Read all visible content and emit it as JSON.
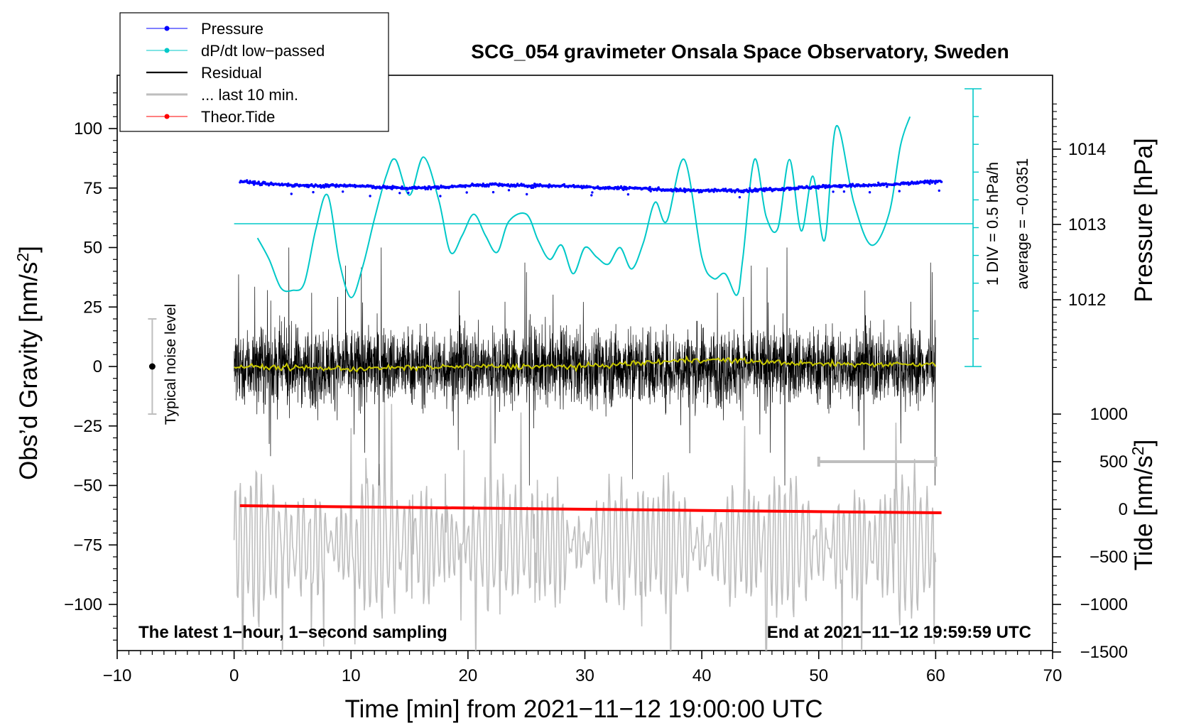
{
  "chart_data": {
    "type": "line",
    "title": "SCG_054 gravimeter Onsala Space Observatory, Sweden",
    "xlabel": "Time [min] from 2021−11−12 19:00:00 UTC",
    "xlim": [
      -10,
      70
    ],
    "xticks": [
      -10,
      0,
      10,
      20,
      30,
      40,
      50,
      60,
      70
    ],
    "xtick_labels": [
      "−10",
      "0",
      "10",
      "20",
      "30",
      "40",
      "50",
      "60",
      "70"
    ],
    "ylabel_left": "Obs’d Gravity [nm/s",
    "ylabel_left_sup": "2",
    "ylabel_left_close": "]",
    "ylim_left": [
      -120,
      120
    ],
    "yticks_left": [
      100,
      75,
      50,
      25,
      0,
      -25,
      -50,
      -75,
      -100
    ],
    "ytick_labels_left": [
      "100",
      "75",
      "50",
      "25",
      "0",
      "−25",
      "−50",
      "−75",
      "−100"
    ],
    "ylabel_pressure": "Pressure [hPa]",
    "pressure_ticks": [
      1012,
      1013,
      1014
    ],
    "pressure_tick_labels": [
      "1012",
      "1013",
      "1014"
    ],
    "ylabel_tide": "Tide [nm/s",
    "ylabel_tide_sup": "2",
    "ylabel_tide_close": "]",
    "tide_ticks": [
      1000,
      500,
      0,
      -500,
      -1000,
      -1500
    ],
    "tide_tick_labels": [
      "1000",
      "500",
      "0",
      "−500",
      "−1000",
      "−1500"
    ],
    "scale_bar_labels": [
      "1 DIV = 0.5 hPa/h",
      "average = −0.0351"
    ],
    "noise_label": "Typical noise level",
    "noise_level": {
      "x": -7,
      "center": 0,
      "range": [
        -20,
        20
      ]
    },
    "last10_bar": {
      "x": [
        50,
        60
      ],
      "y": -40
    },
    "bottom_left_note": "The latest 1−hour, 1−second sampling",
    "bottom_right_note": "End at 2021−11−12 19:59:59 UTC",
    "legend": [
      {
        "label": "Pressure",
        "color": "#0000ff",
        "marker": "dot"
      },
      {
        "label": "dP/dt low−passed",
        "color": "#00c8c8",
        "marker": "dot"
      },
      {
        "label": "Residual",
        "color": "#000000",
        "marker": "none"
      },
      {
        "label": "... last 10 min.",
        "color": "#bebebe",
        "marker": "none"
      },
      {
        "label": "Theor.Tide",
        "color": "#ff0000",
        "marker": "dot"
      }
    ],
    "series": [
      {
        "name": "Pressure",
        "color": "#0000ff",
        "x": [
          0.5,
          2,
          4,
          6,
          8,
          10,
          12,
          14,
          16,
          18,
          20,
          22,
          24,
          26,
          28,
          30,
          32,
          34,
          36,
          38,
          40,
          42,
          44,
          46,
          48,
          50,
          52,
          54,
          56,
          58,
          60.5
        ],
        "y": [
          78,
          77,
          76.5,
          76,
          76,
          76,
          75.5,
          75,
          75,
          75.5,
          76,
          76.5,
          76,
          76,
          76,
          75.5,
          75,
          75,
          74.5,
          74,
          74,
          74,
          74,
          74.5,
          75,
          75.5,
          76,
          76,
          76.5,
          77,
          78
        ]
      },
      {
        "name": "dP/dt low−passed",
        "color": "#00c8c8",
        "average_line_y": 60,
        "x": [
          2,
          3,
          4,
          5,
          6,
          7,
          8,
          9,
          10,
          11,
          12,
          13,
          13.8,
          15,
          16.2,
          17.5,
          18.5,
          19.5,
          20.5,
          21.5,
          22.5,
          23.5,
          25,
          26,
          27,
          28,
          29,
          30,
          31,
          32,
          33,
          34,
          35,
          36,
          37,
          38.5,
          40,
          41,
          42,
          43,
          43.5,
          44.5,
          45.5,
          46.5,
          47.5,
          48.5,
          49.5,
          50.5,
          51.5,
          53,
          54.5,
          56,
          57,
          57.8
        ],
        "y": [
          54,
          45,
          33,
          32,
          35,
          58,
          72,
          44,
          29,
          42,
          62,
          80,
          87,
          72,
          88,
          70,
          48,
          55,
          64,
          55,
          48,
          61,
          64,
          53,
          45,
          51,
          39,
          50,
          46,
          43,
          50,
          41,
          52,
          69,
          61,
          87,
          46,
          37,
          39,
          30,
          45,
          87,
          63,
          58,
          87,
          57,
          80,
          53,
          101,
          69,
          51,
          64,
          93,
          105
        ]
      },
      {
        "name": "Residual",
        "color": "#000000",
        "x": [
          0,
          60
        ],
        "amplitude_typical": 25,
        "amplitude_max": 50
      },
      {
        "name": "Residual (smoothed)",
        "color": "#c8c800",
        "x": [
          0,
          10,
          20,
          30,
          40,
          50,
          60
        ],
        "y": [
          0,
          -1,
          0,
          0,
          3,
          1,
          1
        ]
      },
      {
        "name": "... last 10 min.",
        "color": "#bebebe",
        "x": [
          0,
          60
        ],
        "amplitude_typical": 30,
        "amplitude_max": 68
      },
      {
        "name": "Theor.Tide",
        "color": "#ff0000",
        "x": [
          0.5,
          10,
          20,
          30,
          40,
          50,
          60.5
        ],
        "y": [
          -58.5,
          -59,
          -59.5,
          -60,
          -60.5,
          -61,
          -61.5
        ]
      }
    ]
  }
}
